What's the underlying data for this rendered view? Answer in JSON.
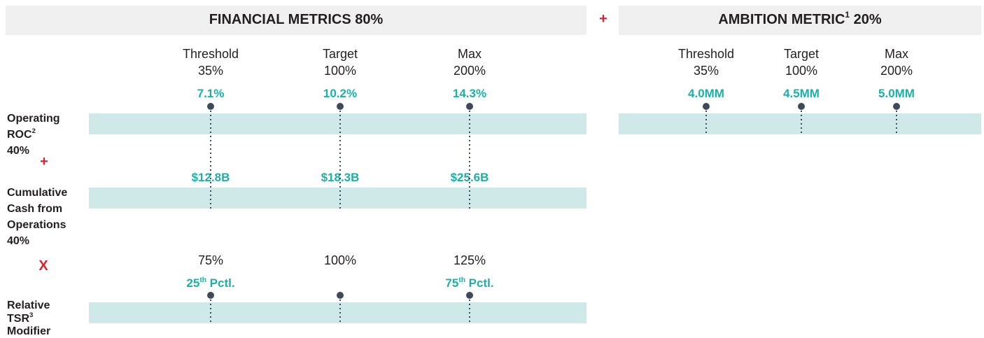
{
  "header_join": "+",
  "financial": {
    "title": "FINANCIAL METRICS 80%",
    "columns": [
      {
        "level": "Threshold",
        "payout": "35%"
      },
      {
        "level": "Target",
        "payout": "100%"
      },
      {
        "level": "Max",
        "payout": "200%"
      }
    ],
    "operating_roc": {
      "label": "Operating",
      "label2": "ROC",
      "sup": "2",
      "weight": "40%",
      "goals": [
        "7.1%",
        "10.2%",
        "14.3%"
      ]
    },
    "row_join": "+",
    "cash": {
      "label_lines": [
        "Cumulative",
        "Cash from",
        "Operations"
      ],
      "weight": "40%",
      "goals": [
        "$12.8B",
        "$18.3B",
        "$25.6B"
      ]
    },
    "modifier_join": "X",
    "tsr": {
      "modifiers": [
        "75%",
        "100%",
        "125%"
      ],
      "threshold_goal": {
        "base": "25",
        "sup": "th",
        "rest": " Pctl."
      },
      "max_goal": {
        "base": "75",
        "sup": "th",
        "rest": " Pctl."
      },
      "label": "Relative",
      "label2": "TSR",
      "sup": "3",
      "label3": "Modifier"
    }
  },
  "ambition": {
    "title": "AMBITION METRIC",
    "sup": "1",
    "title_rest": " 20%",
    "columns": [
      {
        "level": "Threshold",
        "payout": "35%"
      },
      {
        "level": "Target",
        "payout": "100%"
      },
      {
        "level": "Max",
        "payout": "200%"
      }
    ],
    "goals": [
      "4.0MM",
      "4.5MM",
      "5.0MM"
    ]
  }
}
